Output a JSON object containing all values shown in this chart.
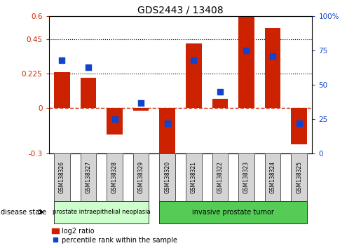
{
  "title": "GDS2443 / 13408",
  "samples": [
    "GSM138326",
    "GSM138327",
    "GSM138328",
    "GSM138329",
    "GSM138320",
    "GSM138321",
    "GSM138322",
    "GSM138323",
    "GSM138324",
    "GSM138325"
  ],
  "log2_ratio": [
    0.235,
    0.195,
    -0.175,
    -0.02,
    -0.32,
    0.42,
    0.06,
    0.595,
    0.52,
    -0.24
  ],
  "percentile_rank": [
    68,
    63,
    25,
    37,
    22,
    68,
    45,
    75,
    71,
    22
  ],
  "bar_color": "#cc2200",
  "dot_color": "#1144cc",
  "ylim_left": [
    -0.3,
    0.6
  ],
  "ylim_right": [
    0,
    100
  ],
  "yticks_left": [
    -0.3,
    0.0,
    0.225,
    0.45,
    0.6
  ],
  "ytick_labels_left": [
    "-0.3",
    "0",
    "0.225",
    "0.45",
    "0.6"
  ],
  "yticks_right": [
    0,
    25,
    50,
    75,
    100
  ],
  "ytick_labels_right": [
    "0",
    "25",
    "50",
    "75",
    "100%"
  ],
  "hlines": [
    0.45,
    0.225
  ],
  "group1_label": "prostate intraepithelial neoplasia",
  "group2_label": "invasive prostate tumor",
  "group1_color": "#ccffcc",
  "group2_color": "#55cc55",
  "disease_state_label": "disease state",
  "legend_bar_label": "log2 ratio",
  "legend_dot_label": "percentile rank within the sample",
  "group1_count": 4,
  "group2_count": 6,
  "bar_width": 0.6,
  "dot_size": 40,
  "background_color": "#ffffff"
}
